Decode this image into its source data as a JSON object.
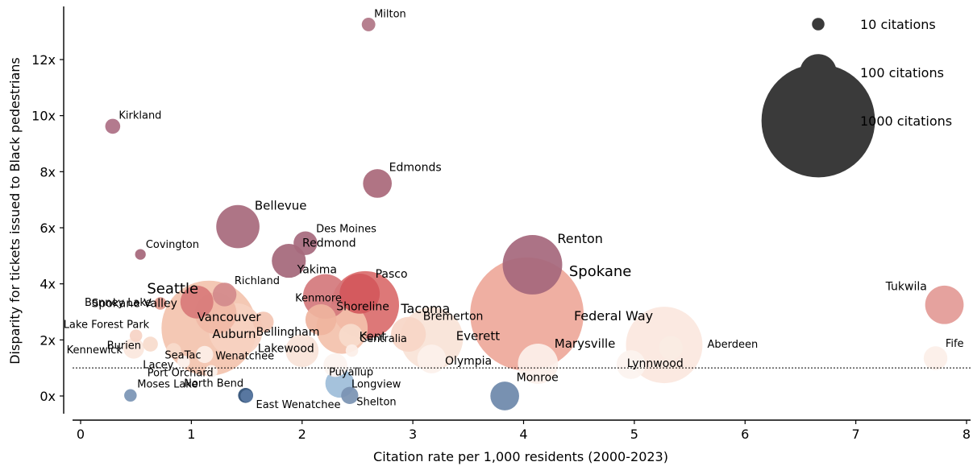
{
  "chart_data": {
    "type": "scatter",
    "title": "",
    "xlabel": "Citation rate per 1,000 residents (2000-2023)",
    "ylabel": "Disparity for tickets issued to Black pedestrians",
    "xlim": [
      -0.1,
      8.05
    ],
    "ylim": [
      -0.7,
      13.9
    ],
    "x_ticks": [
      0,
      1,
      2,
      3,
      4,
      5,
      6,
      7,
      8
    ],
    "x_tick_labels": [
      "0",
      "1",
      "2",
      "3",
      "4",
      "5",
      "6",
      "7",
      "8"
    ],
    "y_ticks": [
      0,
      2,
      4,
      6,
      8,
      10,
      12
    ],
    "y_tick_labels": [
      "0x",
      "2x",
      "4x",
      "6x",
      "8x",
      "10x",
      "12x"
    ],
    "reference_line": {
      "y": 1,
      "style": "dotted"
    },
    "grid": false,
    "color_scale": {
      "low": "#2c4f7c",
      "mid": "#faf3ef",
      "high": "#d1424a",
      "high_muted": "#a35a72"
    },
    "legend": {
      "placement": "top-right",
      "entries": [
        {
          "label": "10 citations",
          "citations": 10
        },
        {
          "label": "100 citations",
          "citations": 100
        },
        {
          "label": "1000 citations",
          "citations": 1000
        }
      ],
      "color": "#3a3a3a"
    },
    "points": [
      {
        "name": "Milton",
        "x": 2.6,
        "y": 13.25,
        "citations": 12,
        "color": "#b07585",
        "label_size": 13
      },
      {
        "name": "Kirkland",
        "x": 0.29,
        "y": 9.62,
        "citations": 15,
        "color": "#ad6f84",
        "label_size": 13
      },
      {
        "name": "Edmonds",
        "x": 2.68,
        "y": 7.58,
        "citations": 60,
        "color": "#a96879",
        "label_size": 14
      },
      {
        "name": "Bellevue",
        "x": 1.42,
        "y": 6.04,
        "citations": 140,
        "color": "#a7697c",
        "label_size": 15
      },
      {
        "name": "Des Moines",
        "x": 2.03,
        "y": 5.45,
        "citations": 40,
        "color": "#a6697d",
        "label_size": 13
      },
      {
        "name": "Covington",
        "x": 0.54,
        "y": 5.05,
        "citations": 7,
        "color": "#a56679",
        "label_size": 13
      },
      {
        "name": "Redmond",
        "x": 1.88,
        "y": 4.82,
        "citations": 85,
        "color": "#a46779",
        "label_size": 14
      },
      {
        "name": "Renton",
        "x": 4.08,
        "y": 4.68,
        "citations": 270,
        "color": "#a5677c",
        "label_size": 16
      },
      {
        "name": "Richland",
        "x": 1.3,
        "y": 3.62,
        "citations": 40,
        "color": "#d28a8c",
        "label_size": 13
      },
      {
        "name": "Yakima",
        "x": 2.21,
        "y": 3.55,
        "citations": 150,
        "color": "#d4787c",
        "label_size": 14
      },
      {
        "name": "Pasco",
        "x": 2.52,
        "y": 3.65,
        "citations": 120,
        "color": "#d2585c",
        "label_size": 14
      },
      {
        "name": "Bonney Lake",
        "x": 0.72,
        "y": 3.3,
        "citations": 10,
        "color": "#e39a8e",
        "label_size": 13
      },
      {
        "name": "Spokane Valley",
        "x": 1.05,
        "y": 3.35,
        "citations": 80,
        "color": "#d87a7a",
        "label_size": 14
      },
      {
        "name": "Tacoma",
        "x": 2.57,
        "y": 3.25,
        "citations": 350,
        "color": "#da6c6c",
        "label_size": 16
      },
      {
        "name": "Spokane",
        "x": 4.03,
        "y": 2.92,
        "citations": 1000,
        "color": "#eea89a",
        "label_size": 18
      },
      {
        "name": "Tukwila",
        "x": 7.8,
        "y": 3.25,
        "citations": 110,
        "color": "#e39a96",
        "label_size": 14
      },
      {
        "name": "Vancouver",
        "x": 1.22,
        "y": 2.95,
        "citations": 130,
        "color": "#f0b9a6",
        "label_size": 15
      },
      {
        "name": "Kenmore",
        "x": 2.17,
        "y": 2.72,
        "citations": 70,
        "color": "#efb49e",
        "label_size": 13
      },
      {
        "name": "Seattle",
        "x": 1.16,
        "y": 2.42,
        "citations": 700,
        "color": "#f3c3ae",
        "label_size": 18
      },
      {
        "name": "Shoreline",
        "x": 2.36,
        "y": 2.42,
        "citations": 200,
        "color": "#f3c1ab",
        "label_size": 14
      },
      {
        "name": "Bellingham",
        "x": 1.65,
        "y": 2.64,
        "citations": 30,
        "color": "#f3c6b3",
        "label_size": 14
      },
      {
        "name": "Lake Forest Park",
        "x": 0.5,
        "y": 2.15,
        "citations": 10,
        "color": "#f6d3c4",
        "label_size": 13
      },
      {
        "name": "Auburn",
        "x": 1.4,
        "y": 2.35,
        "citations": 220,
        "color": "#f6d1c1",
        "label_size": 15
      },
      {
        "name": "Kent",
        "x": 2.44,
        "y": 2.15,
        "citations": 40,
        "color": "#f7dbcc",
        "label_size": 15
      },
      {
        "name": "Bremerton",
        "x": 2.96,
        "y": 2.2,
        "citations": 90,
        "color": "#f7d6c7",
        "label_size": 14
      },
      {
        "name": "Everett",
        "x": 3.17,
        "y": 2.05,
        "citations": 300,
        "color": "#f9e3d7",
        "label_size": 15
      },
      {
        "name": "Federal Way",
        "x": 5.27,
        "y": 1.82,
        "citations": 450,
        "color": "#fbe7de",
        "label_size": 16
      },
      {
        "name": "Burien",
        "x": 0.63,
        "y": 1.85,
        "citations": 15,
        "color": "#f7dbcc",
        "label_size": 13
      },
      {
        "name": "SeaTac",
        "x": 0.84,
        "y": 1.62,
        "citations": 15,
        "color": "#f7dbcc",
        "label_size": 13
      },
      {
        "name": "Lakewood",
        "x": 2.0,
        "y": 1.62,
        "citations": 80,
        "color": "#f9e3d8",
        "label_size": 14
      },
      {
        "name": "Kennewick",
        "x": 0.48,
        "y": 1.7,
        "citations": 30,
        "color": "#fbe7dd",
        "label_size": 13
      },
      {
        "name": "Centralia",
        "x": 2.45,
        "y": 1.62,
        "citations": 10,
        "color": "#fcefe8",
        "label_size": 13
      },
      {
        "name": "Wenatchee",
        "x": 1.12,
        "y": 1.48,
        "citations": 20,
        "color": "#fcefe8",
        "label_size": 13
      },
      {
        "name": "Aberdeen",
        "x": 5.33,
        "y": 1.72,
        "citations": 40,
        "color": "#faebe3",
        "label_size": 13
      },
      {
        "name": "Fife",
        "x": 7.72,
        "y": 1.35,
        "citations": 40,
        "color": "#fcefe8",
        "label_size": 13
      },
      {
        "name": "Marysville",
        "x": 4.13,
        "y": 1.15,
        "citations": 120,
        "color": "#fcf0ea",
        "label_size": 15
      },
      {
        "name": "Olympia",
        "x": 3.17,
        "y": 1.32,
        "citations": 60,
        "color": "#fcf1ec",
        "label_size": 14
      },
      {
        "name": "Lacey",
        "x": 0.93,
        "y": 1.22,
        "citations": 10,
        "color": "#fcf3ef",
        "label_size": 13
      },
      {
        "name": "Puyallup",
        "x": 2.3,
        "y": 1.1,
        "citations": 40,
        "color": "#fcf3ef",
        "label_size": 13
      },
      {
        "name": "Lynnwood",
        "x": 4.97,
        "y": 1.12,
        "citations": 60,
        "color": "#fcf3ef",
        "label_size": 14
      },
      {
        "name": "Port Orchard",
        "x": 1.18,
        "y": 0.88,
        "citations": 10,
        "color": "#fcf3ef",
        "label_size": 13
      },
      {
        "name": "Longview",
        "x": 2.34,
        "y": 0.45,
        "citations": 60,
        "color": "#9dbdd9",
        "label_size": 13
      },
      {
        "name": "North Bend",
        "x": 1.49,
        "y": 0.02,
        "citations": 15,
        "color": "#2d4d74",
        "label_size": 13
      },
      {
        "name": "Moses Lake",
        "x": 0.45,
        "y": 0.02,
        "citations": 10,
        "color": "#7a94b4",
        "label_size": 13
      },
      {
        "name": "East Wenatchee",
        "x": 1.5,
        "y": 0.0,
        "citations": 10,
        "color": "#5a7aa3",
        "label_size": 13
      },
      {
        "name": "Shelton",
        "x": 2.43,
        "y": 0.02,
        "citations": 20,
        "color": "#7993b2",
        "label_size": 13
      },
      {
        "name": "Monroe",
        "x": 3.83,
        "y": 0.0,
        "citations": 60,
        "color": "#6d88aa",
        "label_size": 14
      }
    ]
  }
}
